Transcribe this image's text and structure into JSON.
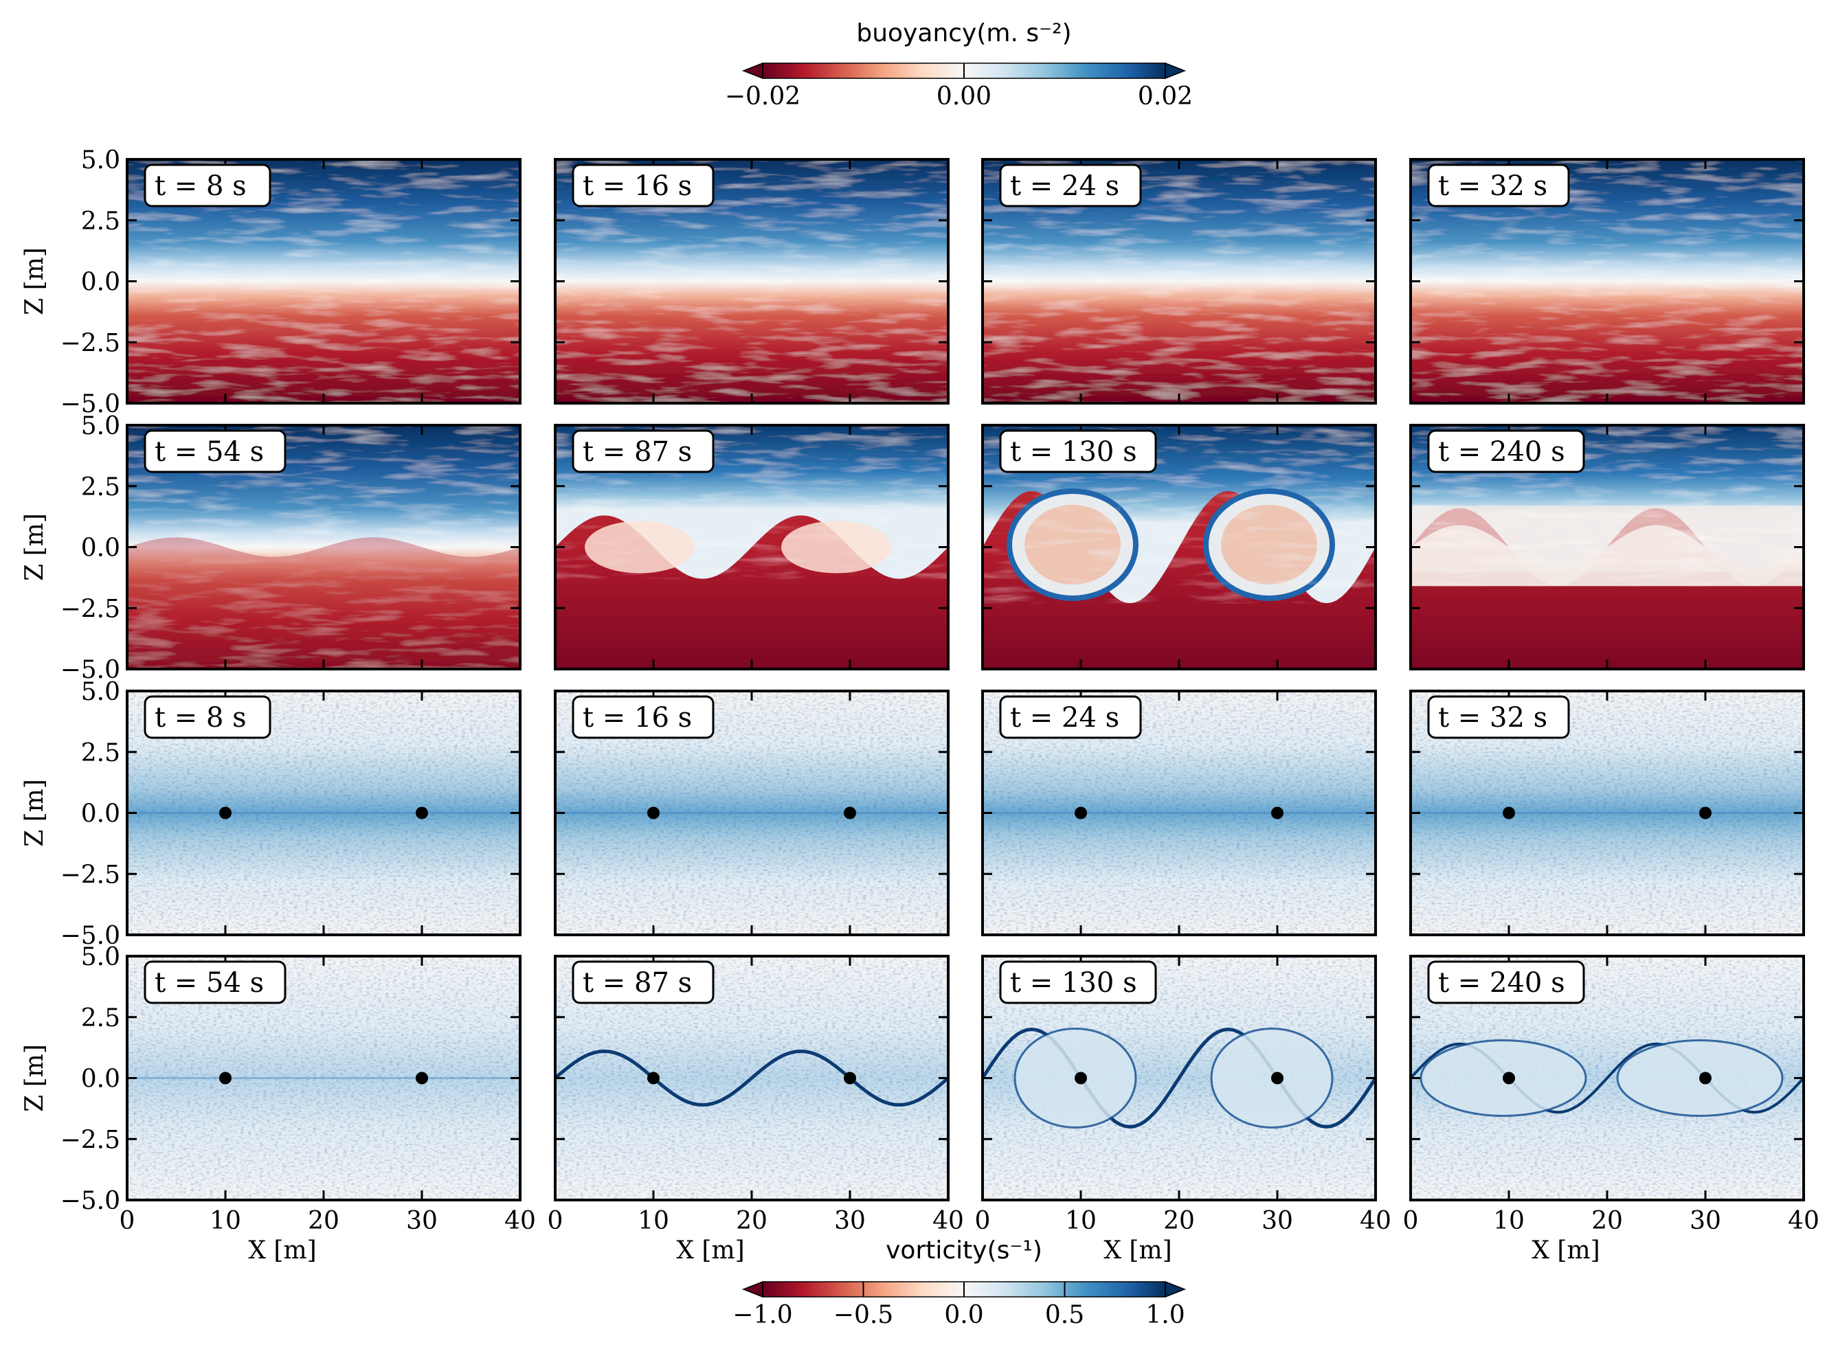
{
  "chart_data": {
    "type": "heatmap",
    "colorbars": [
      {
        "id": "buoyancy",
        "label": "buoyancy(m. s⁻²)",
        "range": [
          -0.02,
          0.02
        ],
        "ticks": [
          "−0.02",
          "0.00",
          "0.02"
        ],
        "tick_values": [
          -0.02,
          0.0,
          0.02
        ],
        "extend": "both",
        "colormap": "RdBu"
      },
      {
        "id": "vorticity",
        "label": "vorticity(s⁻¹)",
        "range": [
          -1.0,
          1.0
        ],
        "ticks": [
          "−1.0",
          "−0.5",
          "0.0",
          "0.5",
          "1.0"
        ],
        "tick_values": [
          -1.0,
          -0.5,
          0.0,
          0.5,
          1.0
        ],
        "extend": "both",
        "colormap": "RdBu"
      }
    ],
    "xlabel": "X [m]",
    "ylabel": "Z [m]",
    "xlim": [
      0,
      40
    ],
    "ylim": [
      -5,
      5
    ],
    "x_ticks": [
      "0",
      "10",
      "20",
      "30",
      "40"
    ],
    "x_tick_values": [
      0,
      10,
      20,
      30,
      40
    ],
    "y_ticks": [
      "5.0",
      "2.5",
      "0.0",
      "−2.5",
      "−5.0"
    ],
    "y_tick_values": [
      5.0,
      2.5,
      0.0,
      -2.5,
      -5.0
    ],
    "markers": [
      {
        "x": 10,
        "z": 0
      },
      {
        "x": 30,
        "z": 0
      }
    ],
    "rows": [
      {
        "field": "buoyancy",
        "panels": [
          {
            "label": "t = 8 s",
            "t": 8
          },
          {
            "label": "t = 16 s",
            "t": 16
          },
          {
            "label": "t = 24 s",
            "t": 24
          },
          {
            "label": "t = 32 s",
            "t": 32
          }
        ]
      },
      {
        "field": "buoyancy",
        "panels": [
          {
            "label": "t = 54 s",
            "t": 54
          },
          {
            "label": "t = 87 s",
            "t": 87
          },
          {
            "label": "t = 130 s",
            "t": 130
          },
          {
            "label": "t = 240 s",
            "t": 240
          }
        ]
      },
      {
        "field": "vorticity",
        "panels": [
          {
            "label": "t = 8 s",
            "t": 8
          },
          {
            "label": "t = 16 s",
            "t": 16
          },
          {
            "label": "t = 24 s",
            "t": 24
          },
          {
            "label": "t = 32 s",
            "t": 32
          }
        ]
      },
      {
        "field": "vorticity",
        "panels": [
          {
            "label": "t = 54 s",
            "t": 54
          },
          {
            "label": "t = 87 s",
            "t": 87
          },
          {
            "label": "t = 130 s",
            "t": 130
          },
          {
            "label": "t = 240 s",
            "t": 240
          }
        ]
      }
    ]
  }
}
